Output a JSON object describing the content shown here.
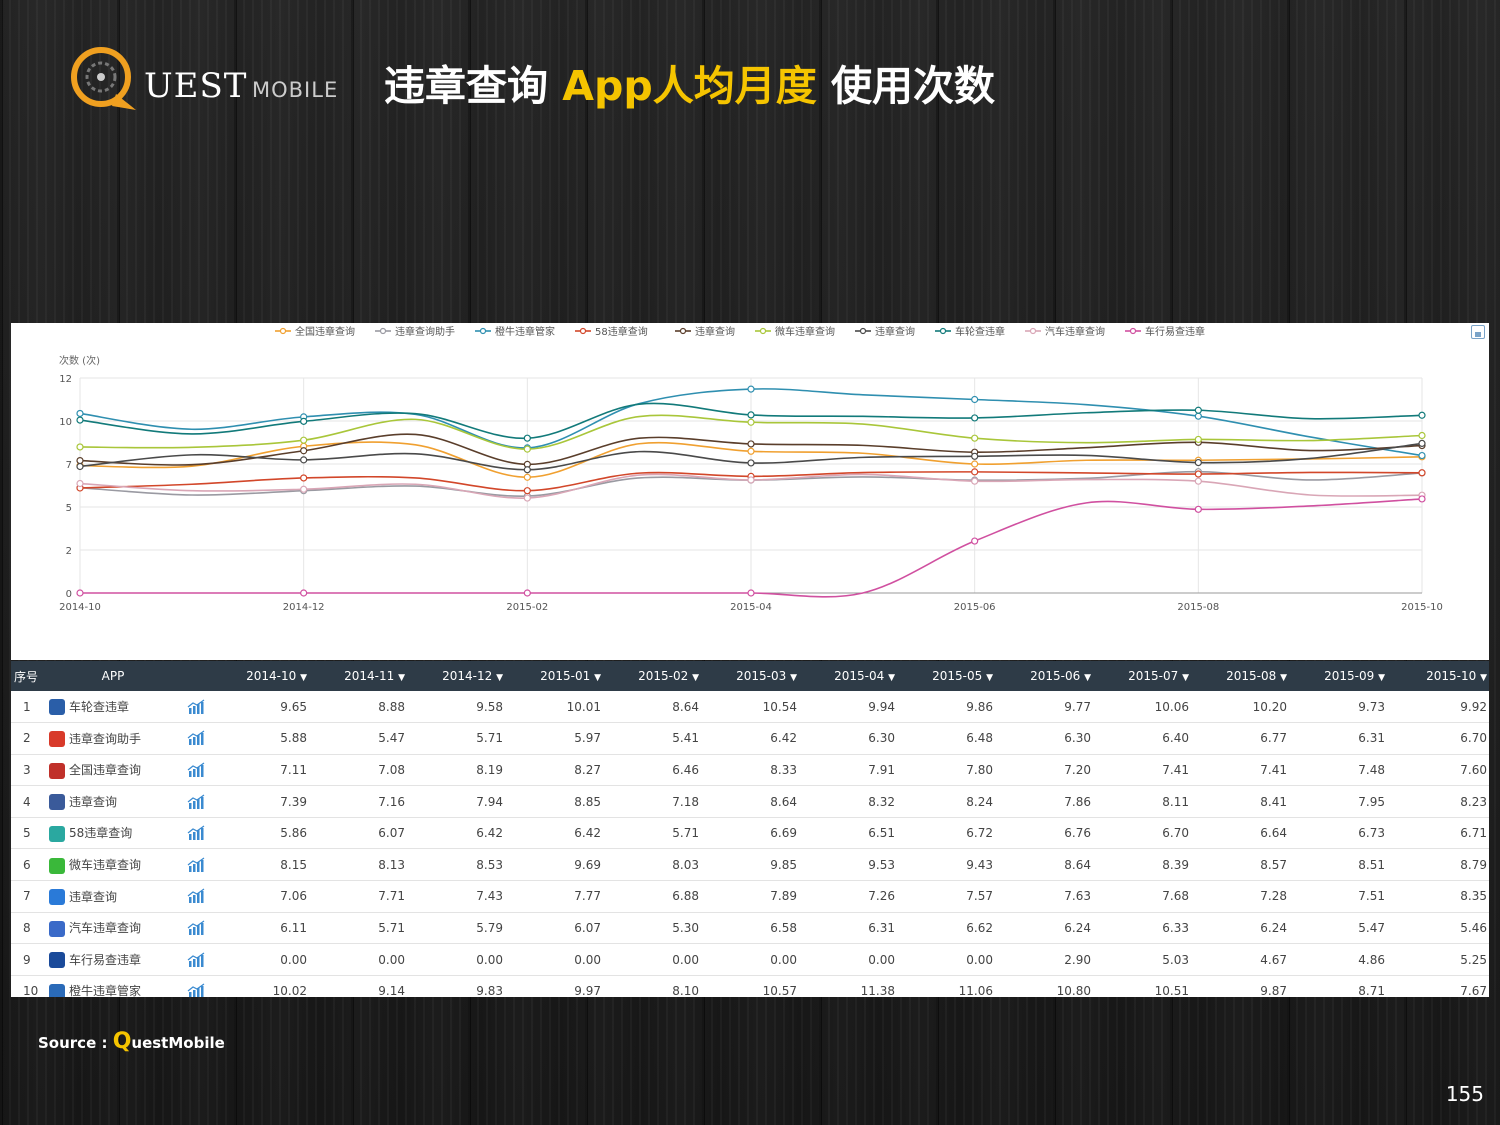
{
  "logo": {
    "main": "UEST",
    "sub": "MOBILE"
  },
  "title": {
    "part1": "违章查询 ",
    "highlight": "App人均月度",
    "part2": " 使用次数"
  },
  "source": {
    "prefix": "Source : ",
    "q": "Q",
    "rest": "uestMobile"
  },
  "page_number": "155",
  "colors": {
    "accent": "#f5c400",
    "header_bg": "#2e3b47"
  },
  "chart_data": {
    "type": "line",
    "ylabel": "次数 (次)",
    "ylim": [
      0,
      12
    ],
    "yticks": [
      {
        "v": 0,
        "label": "0"
      },
      {
        "v": 2.4,
        "label": "2"
      },
      {
        "v": 4.8,
        "label": "5"
      },
      {
        "v": 7.2,
        "label": "7"
      },
      {
        "v": 9.6,
        "label": "10"
      },
      {
        "v": 12,
        "label": "12"
      }
    ],
    "x": [
      "2014-10",
      "2014-11",
      "2014-12",
      "2015-01",
      "2015-02",
      "2015-03",
      "2015-04",
      "2015-05",
      "2015-06",
      "2015-07",
      "2015-08",
      "2015-09",
      "2015-10"
    ],
    "xtick_labels": [
      "2014-10",
      "2014-12",
      "2015-02",
      "2015-04",
      "2015-06",
      "2015-08",
      "2015-10"
    ],
    "legend_position": "top",
    "series": [
      {
        "name": "全国违章查询",
        "color": "#f0a030",
        "values": [
          7.11,
          7.08,
          8.19,
          8.27,
          6.46,
          8.33,
          7.91,
          7.8,
          7.2,
          7.41,
          7.41,
          7.48,
          7.6
        ]
      },
      {
        "name": "违章查询助手",
        "color": "#9a9aa2",
        "values": [
          5.88,
          5.47,
          5.71,
          5.97,
          5.41,
          6.42,
          6.3,
          6.48,
          6.3,
          6.4,
          6.77,
          6.31,
          6.7
        ]
      },
      {
        "name": "橙牛违章管家",
        "color": "#2f8fb0",
        "values": [
          10.02,
          9.14,
          9.83,
          9.97,
          8.1,
          10.57,
          11.38,
          11.06,
          10.8,
          10.51,
          9.87,
          8.71,
          7.67
        ]
      },
      {
        "name": "58违章查询",
        "color": "#d2472a",
        "values": [
          5.86,
          6.07,
          6.42,
          6.42,
          5.71,
          6.69,
          6.51,
          6.72,
          6.76,
          6.7,
          6.64,
          6.73,
          6.71
        ]
      },
      {
        "name": "违章查询",
        "color": "#5a3e2b",
        "values": [
          7.39,
          7.16,
          7.94,
          8.85,
          7.18,
          8.64,
          8.32,
          8.24,
          7.86,
          8.11,
          8.41,
          7.95,
          8.23
        ]
      },
      {
        "name": "微车违章查询",
        "color": "#a9c63a",
        "values": [
          8.15,
          8.13,
          8.53,
          9.69,
          8.03,
          9.85,
          9.53,
          9.43,
          8.64,
          8.39,
          8.57,
          8.51,
          8.79
        ]
      },
      {
        "name": "违章查询",
        "color": "#4a4a4a",
        "values": [
          7.06,
          7.71,
          7.43,
          7.77,
          6.88,
          7.89,
          7.26,
          7.57,
          7.63,
          7.68,
          7.28,
          7.51,
          8.35
        ]
      },
      {
        "name": "车轮查违章",
        "color": "#127a7a",
        "values": [
          9.65,
          8.88,
          9.58,
          10.01,
          8.64,
          10.54,
          9.94,
          9.86,
          9.77,
          10.06,
          10.2,
          9.73,
          9.92
        ]
      },
      {
        "name": "汽车违章查询",
        "color": "#d9a6b6",
        "values": [
          6.11,
          5.71,
          5.79,
          6.07,
          5.3,
          6.58,
          6.31,
          6.62,
          6.24,
          6.33,
          6.24,
          5.47,
          5.46
        ]
      },
      {
        "name": "车行易查违章",
        "color": "#d050a0",
        "values": [
          0.0,
          0.0,
          0.0,
          0.0,
          0.0,
          0.0,
          0.0,
          0.0,
          2.9,
          5.03,
          4.67,
          4.86,
          5.25
        ]
      }
    ]
  },
  "table": {
    "headers": [
      "序号",
      "APP",
      "2014-10",
      "2014-11",
      "2014-12",
      "2015-01",
      "2015-02",
      "2015-03",
      "2015-04",
      "2015-05",
      "2015-06",
      "2015-07",
      "2015-08",
      "2015-09",
      "2015-10"
    ],
    "sort_arrow": "▼",
    "rows": [
      {
        "idx": "1",
        "app": "车轮查违章",
        "icon_color": "#2a5ea8",
        "icon": "car-wheel-app-icon",
        "values": [
          "9.65",
          "8.88",
          "9.58",
          "10.01",
          "8.64",
          "10.54",
          "9.94",
          "9.86",
          "9.77",
          "10.06",
          "10.20",
          "9.73",
          "9.92"
        ]
      },
      {
        "idx": "2",
        "app": "违章查询助手",
        "icon_color": "#d83a2a",
        "icon": "violation-helper-app-icon",
        "values": [
          "5.88",
          "5.47",
          "5.71",
          "5.97",
          "5.41",
          "6.42",
          "6.30",
          "6.48",
          "6.30",
          "6.40",
          "6.77",
          "6.31",
          "6.70"
        ]
      },
      {
        "idx": "3",
        "app": "全国违章查询",
        "icon_color": "#c0302a",
        "icon": "national-violation-app-icon",
        "values": [
          "7.11",
          "7.08",
          "8.19",
          "8.27",
          "6.46",
          "8.33",
          "7.91",
          "7.80",
          "7.20",
          "7.41",
          "7.41",
          "7.48",
          "7.60"
        ]
      },
      {
        "idx": "4",
        "app": "违章查询",
        "icon_color": "#3a5a9a",
        "icon": "violation-query-app-icon",
        "values": [
          "7.39",
          "7.16",
          "7.94",
          "8.85",
          "7.18",
          "8.64",
          "8.32",
          "8.24",
          "7.86",
          "8.11",
          "8.41",
          "7.95",
          "8.23"
        ]
      },
      {
        "idx": "5",
        "app": "58违章查询",
        "icon_color": "#2aa8a0",
        "icon": "58-violation-app-icon",
        "values": [
          "5.86",
          "6.07",
          "6.42",
          "6.42",
          "5.71",
          "6.69",
          "6.51",
          "6.72",
          "6.76",
          "6.70",
          "6.64",
          "6.73",
          "6.71"
        ]
      },
      {
        "idx": "6",
        "app": "微车违章查询",
        "icon_color": "#3ab83a",
        "icon": "weiche-app-icon",
        "values": [
          "8.15",
          "8.13",
          "8.53",
          "9.69",
          "8.03",
          "9.85",
          "9.53",
          "9.43",
          "8.64",
          "8.39",
          "8.57",
          "8.51",
          "8.79"
        ]
      },
      {
        "idx": "7",
        "app": "违章查询",
        "icon_color": "#2a7ad8",
        "icon": "violation-query-2-app-icon",
        "values": [
          "7.06",
          "7.71",
          "7.43",
          "7.77",
          "6.88",
          "7.89",
          "7.26",
          "7.57",
          "7.63",
          "7.68",
          "7.28",
          "7.51",
          "8.35"
        ]
      },
      {
        "idx": "8",
        "app": "汽车违章查询",
        "icon_color": "#3a6ac8",
        "icon": "auto-violation-app-icon",
        "values": [
          "6.11",
          "5.71",
          "5.79",
          "6.07",
          "5.30",
          "6.58",
          "6.31",
          "6.62",
          "6.24",
          "6.33",
          "6.24",
          "5.47",
          "5.46"
        ]
      },
      {
        "idx": "9",
        "app": "车行易查违章",
        "icon_color": "#1a4a9a",
        "icon": "chexingyi-app-icon",
        "values": [
          "0.00",
          "0.00",
          "0.00",
          "0.00",
          "0.00",
          "0.00",
          "0.00",
          "0.00",
          "2.90",
          "5.03",
          "4.67",
          "4.86",
          "5.25"
        ]
      },
      {
        "idx": "10",
        "app": "橙牛违章管家",
        "icon_color": "#2a6ab8",
        "icon": "chengniu-app-icon",
        "values": [
          "10.02",
          "9.14",
          "9.83",
          "9.97",
          "8.10",
          "10.57",
          "11.38",
          "11.06",
          "10.80",
          "10.51",
          "9.87",
          "8.71",
          "7.67"
        ]
      }
    ]
  }
}
